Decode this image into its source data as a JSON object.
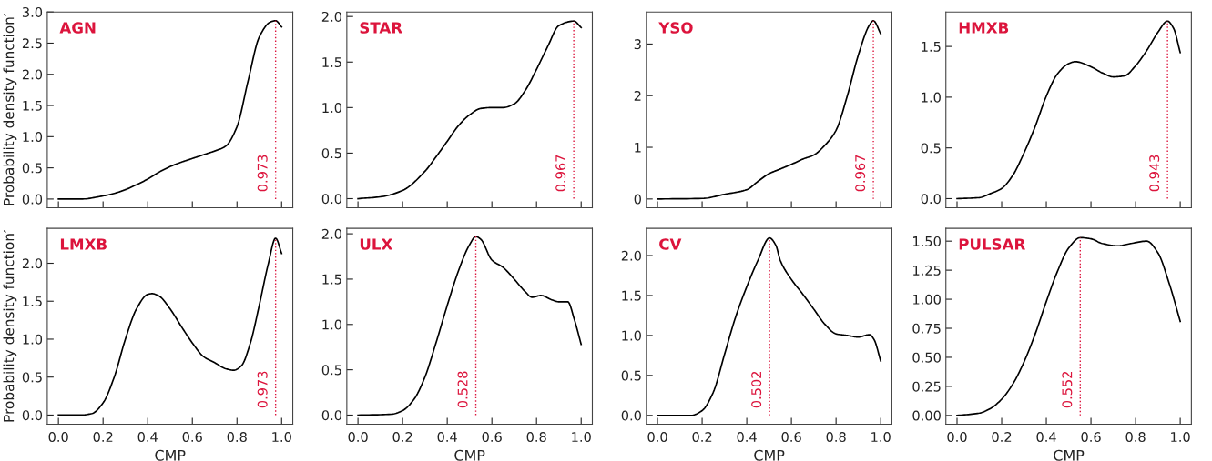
{
  "chart_data": [
    {
      "type": "line",
      "title": "AGN",
      "ylabel": "Probability density function′",
      "xlim": [
        -0.05,
        1.05
      ],
      "xticks": [
        {
          "value": 0,
          "label": null
        },
        {
          "value": 0.2,
          "label": null
        },
        {
          "value": 0.4,
          "label": null
        },
        {
          "value": 0.6,
          "label": null
        },
        {
          "value": 0.8,
          "label": null
        },
        {
          "value": 1.0,
          "label": null
        }
      ],
      "ylim": [
        -0.14,
        3.0
      ],
      "yticks": [
        {
          "value": 0,
          "label": "0.0"
        },
        {
          "value": 0.5,
          "label": "0.5"
        },
        {
          "value": 1.0,
          "label": "1.0"
        },
        {
          "value": 1.5,
          "label": "1.5"
        },
        {
          "value": 2.0,
          "label": "2.0"
        },
        {
          "value": 2.5,
          "label": "2.5"
        },
        {
          "value": 3.0,
          "label": "3.0"
        }
      ],
      "tick_labels": "y",
      "grid": false,
      "legend": false,
      "series": [
        {
          "color": "#000000",
          "x": [
            0,
            0.1,
            0.2,
            0.25,
            0.3,
            0.35,
            0.4,
            0.45,
            0.5,
            0.55,
            0.6,
            0.65,
            0.7,
            0.75,
            0.8,
            0.85,
            0.9,
            0.95,
            0.973,
            1.0
          ],
          "values": [
            0,
            0.0,
            0.05,
            0.09,
            0.15,
            0.23,
            0.32,
            0.43,
            0.52,
            0.59,
            0.65,
            0.71,
            0.77,
            0.85,
            1.16,
            1.9,
            2.6,
            2.84,
            2.86,
            2.76
          ]
        }
      ],
      "ref_lines": [
        {
          "axis": "x",
          "value": 0.973,
          "label": "0.973",
          "color": "#dc143c",
          "line_style": "dotted"
        }
      ]
    },
    {
      "type": "line",
      "title": "STAR",
      "xlim": [
        -0.05,
        1.05
      ],
      "xticks": [
        {
          "value": 0,
          "label": null
        },
        {
          "value": 0.2,
          "label": null
        },
        {
          "value": 0.4,
          "label": null
        },
        {
          "value": 0.6,
          "label": null
        },
        {
          "value": 0.8,
          "label": null
        },
        {
          "value": 1.0,
          "label": null
        }
      ],
      "ylim": [
        -0.1,
        2.05
      ],
      "yticks": [
        {
          "value": 0,
          "label": "0.0"
        },
        {
          "value": 0.5,
          "label": "0.5"
        },
        {
          "value": 1.0,
          "label": "1.0"
        },
        {
          "value": 1.5,
          "label": "1.5"
        },
        {
          "value": 2.0,
          "label": "2.0"
        }
      ],
      "tick_labels": "y",
      "grid": false,
      "legend": false,
      "series": [
        {
          "color": "#000000",
          "x": [
            0,
            0.1,
            0.2,
            0.3,
            0.35,
            0.4,
            0.45,
            0.5,
            0.55,
            0.6,
            0.65,
            0.7,
            0.75,
            0.8,
            0.85,
            0.9,
            0.967,
            1.0
          ],
          "values": [
            0,
            0.02,
            0.09,
            0.3,
            0.46,
            0.63,
            0.8,
            0.92,
            0.99,
            1.0,
            1.0,
            1.04,
            1.19,
            1.42,
            1.67,
            1.9,
            1.95,
            1.88
          ]
        }
      ],
      "ref_lines": [
        {
          "axis": "x",
          "value": 0.967,
          "label": "0.967",
          "color": "#dc143c",
          "line_style": "dotted"
        }
      ]
    },
    {
      "type": "line",
      "title": "YSO",
      "xlim": [
        -0.05,
        1.05
      ],
      "xticks": [
        {
          "value": 0,
          "label": null
        },
        {
          "value": 0.2,
          "label": null
        },
        {
          "value": 0.4,
          "label": null
        },
        {
          "value": 0.6,
          "label": null
        },
        {
          "value": 0.8,
          "label": null
        },
        {
          "value": 1.0,
          "label": null
        }
      ],
      "ylim": [
        -0.17,
        3.62
      ],
      "yticks": [
        0,
        1,
        2,
        3
      ],
      "tick_labels": "y",
      "grid": false,
      "legend": false,
      "series": [
        {
          "color": "#000000",
          "x": [
            0,
            0.2,
            0.3,
            0.4,
            0.45,
            0.5,
            0.55,
            0.6,
            0.65,
            0.7,
            0.75,
            0.8,
            0.85,
            0.9,
            0.95,
            0.967,
            1.0
          ],
          "values": [
            0,
            0.01,
            0.09,
            0.18,
            0.34,
            0.49,
            0.58,
            0.67,
            0.77,
            0.85,
            1.04,
            1.33,
            1.99,
            2.79,
            3.37,
            3.45,
            3.2
          ]
        }
      ],
      "ref_lines": [
        {
          "axis": "x",
          "value": 0.967,
          "label": "0.967",
          "color": "#dc143c",
          "line_style": "dotted"
        }
      ]
    },
    {
      "type": "line",
      "title": "HMXB",
      "xlim": [
        -0.05,
        1.05
      ],
      "xticks": [
        {
          "value": 0,
          "label": null
        },
        {
          "value": 0.2,
          "label": null
        },
        {
          "value": 0.4,
          "label": null
        },
        {
          "value": 0.6,
          "label": null
        },
        {
          "value": 0.8,
          "label": null
        },
        {
          "value": 1.0,
          "label": null
        }
      ],
      "ylim": [
        -0.09,
        1.84
      ],
      "yticks": [
        {
          "value": 0,
          "label": "0.0"
        },
        {
          "value": 0.5,
          "label": "0.5"
        },
        {
          "value": 1.0,
          "label": "1.0"
        },
        {
          "value": 1.5,
          "label": "1.5"
        }
      ],
      "tick_labels": "y",
      "grid": false,
      "legend": false,
      "series": [
        {
          "color": "#000000",
          "x": [
            0,
            0.1,
            0.15,
            0.2,
            0.25,
            0.3,
            0.35,
            0.4,
            0.45,
            0.5,
            0.53,
            0.6,
            0.65,
            0.7,
            0.75,
            0.8,
            0.85,
            0.9,
            0.943,
            0.97,
            1.0
          ],
          "values": [
            0,
            0.01,
            0.05,
            0.1,
            0.23,
            0.45,
            0.71,
            1.01,
            1.23,
            1.33,
            1.35,
            1.3,
            1.24,
            1.2,
            1.21,
            1.31,
            1.46,
            1.64,
            1.75,
            1.68,
            1.44
          ]
        }
      ],
      "ref_lines": [
        {
          "axis": "x",
          "value": 0.943,
          "label": "0.943",
          "color": "#dc143c",
          "line_style": "dotted"
        }
      ]
    },
    {
      "type": "line",
      "title": "LMXB",
      "ylabel": "Probability density function′",
      "xlabel": "CMP",
      "xlim": [
        -0.05,
        1.05
      ],
      "xticks": [
        {
          "value": 0,
          "label": "0.0"
        },
        {
          "value": 0.2,
          "label": "0.2"
        },
        {
          "value": 0.4,
          "label": "0.4"
        },
        {
          "value": 0.6,
          "label": "0.6"
        },
        {
          "value": 0.8,
          "label": "0.8"
        },
        {
          "value": 1.0,
          "label": "1.0"
        }
      ],
      "ylim": [
        -0.12,
        2.46
      ],
      "yticks": [
        {
          "value": 0,
          "label": "0.0"
        },
        {
          "value": 0.5,
          "label": "0.5"
        },
        {
          "value": 1.0,
          "label": "1.0"
        },
        {
          "value": 1.5,
          "label": "1.5"
        },
        {
          "value": 2.0,
          "label": "2.0"
        }
      ],
      "grid": false,
      "legend": false,
      "series": [
        {
          "color": "#000000",
          "x": [
            0,
            0.1,
            0.15,
            0.2,
            0.25,
            0.3,
            0.35,
            0.4,
            0.42,
            0.45,
            0.5,
            0.55,
            0.6,
            0.65,
            0.7,
            0.75,
            0.785,
            0.82,
            0.86,
            0.9,
            0.94,
            0.973,
            1.0
          ],
          "values": [
            0,
            0.0,
            0.02,
            0.16,
            0.5,
            1.0,
            1.4,
            1.59,
            1.6,
            1.57,
            1.4,
            1.17,
            0.95,
            0.77,
            0.69,
            0.61,
            0.59,
            0.65,
            0.95,
            1.45,
            1.99,
            2.33,
            2.13
          ]
        }
      ],
      "ref_lines": [
        {
          "axis": "x",
          "value": 0.973,
          "label": "0.973",
          "color": "#dc143c",
          "line_style": "dotted"
        }
      ]
    },
    {
      "type": "line",
      "title": "ULX",
      "xlabel": "CMP",
      "xlim": [
        -0.05,
        1.05
      ],
      "xticks": [
        {
          "value": 0,
          "label": "0.0"
        },
        {
          "value": 0.2,
          "label": "0.2"
        },
        {
          "value": 0.4,
          "label": "0.4"
        },
        {
          "value": 0.6,
          "label": "0.6"
        },
        {
          "value": 0.8,
          "label": "0.8"
        },
        {
          "value": 1.0,
          "label": "1.0"
        }
      ],
      "ylim": [
        -0.1,
        2.06
      ],
      "yticks": [
        {
          "value": 0,
          "label": "0.0"
        },
        {
          "value": 0.5,
          "label": "0.5"
        },
        {
          "value": 1.0,
          "label": "1.0"
        },
        {
          "value": 1.5,
          "label": "1.5"
        },
        {
          "value": 2.0,
          "label": "2.0"
        }
      ],
      "grid": false,
      "legend": false,
      "series": [
        {
          "color": "#000000",
          "x": [
            0,
            0.15,
            0.2,
            0.25,
            0.3,
            0.35,
            0.4,
            0.45,
            0.5,
            0.528,
            0.55,
            0.6,
            0.65,
            0.7,
            0.75,
            0.78,
            0.82,
            0.87,
            0.9,
            0.94,
            0.97,
            1.0
          ],
          "values": [
            0,
            0.01,
            0.05,
            0.17,
            0.42,
            0.8,
            1.21,
            1.59,
            1.88,
            1.97,
            1.94,
            1.71,
            1.63,
            1.5,
            1.36,
            1.3,
            1.32,
            1.27,
            1.25,
            1.25,
            1.05,
            0.78
          ]
        }
      ],
      "ref_lines": [
        {
          "axis": "x",
          "value": 0.528,
          "label": "0.528",
          "color": "#dc143c",
          "line_style": "dotted"
        }
      ]
    },
    {
      "type": "line",
      "title": "CV",
      "xlabel": "CMP",
      "xlim": [
        -0.05,
        1.05
      ],
      "xticks": [
        {
          "value": 0,
          "label": "0.0"
        },
        {
          "value": 0.2,
          "label": "0.2"
        },
        {
          "value": 0.4,
          "label": "0.4"
        },
        {
          "value": 0.6,
          "label": "0.6"
        },
        {
          "value": 0.8,
          "label": "0.8"
        },
        {
          "value": 1.0,
          "label": "1.0"
        }
      ],
      "ylim": [
        -0.11,
        2.34
      ],
      "yticks": [
        {
          "value": 0,
          "label": "0.0"
        },
        {
          "value": 0.5,
          "label": "0.5"
        },
        {
          "value": 1.0,
          "label": "1.0"
        },
        {
          "value": 1.5,
          "label": "1.5"
        },
        {
          "value": 2.0,
          "label": "2.0"
        }
      ],
      "grid": false,
      "legend": false,
      "series": [
        {
          "color": "#000000",
          "x": [
            0,
            0.15,
            0.2,
            0.25,
            0.3,
            0.35,
            0.4,
            0.45,
            0.502,
            0.53,
            0.55,
            0.6,
            0.65,
            0.7,
            0.75,
            0.8,
            0.85,
            0.9,
            0.95,
            0.97,
            1.0
          ],
          "values": [
            0,
            0.0,
            0.06,
            0.29,
            0.76,
            1.23,
            1.61,
            1.94,
            2.22,
            2.13,
            1.94,
            1.7,
            1.52,
            1.33,
            1.14,
            1.02,
            1.0,
            0.98,
            1.01,
            0.95,
            0.68
          ]
        }
      ],
      "ref_lines": [
        {
          "axis": "x",
          "value": 0.502,
          "label": "0.502",
          "color": "#dc143c",
          "line_style": "dotted"
        }
      ]
    },
    {
      "type": "line",
      "title": "PULSAR",
      "xlabel": "CMP",
      "xlim": [
        -0.05,
        1.05
      ],
      "xticks": [
        {
          "value": 0,
          "label": "0.0"
        },
        {
          "value": 0.2,
          "label": "0.2"
        },
        {
          "value": 0.4,
          "label": "0.4"
        },
        {
          "value": 0.6,
          "label": "0.6"
        },
        {
          "value": 0.8,
          "label": "0.8"
        },
        {
          "value": 1.0,
          "label": "1.0"
        }
      ],
      "ylim": [
        -0.075,
        1.61
      ],
      "yticks": [
        {
          "value": 0,
          "label": "0.00"
        },
        {
          "value": 0.25,
          "label": "0.25"
        },
        {
          "value": 0.5,
          "label": "0.50"
        },
        {
          "value": 0.75,
          "label": "0.75"
        },
        {
          "value": 1.0,
          "label": "1.00"
        },
        {
          "value": 1.25,
          "label": "1.25"
        },
        {
          "value": 1.5,
          "label": "1.50"
        }
      ],
      "grid": false,
      "legend": false,
      "series": [
        {
          "color": "#000000",
          "x": [
            0,
            0.1,
            0.15,
            0.2,
            0.25,
            0.3,
            0.35,
            0.4,
            0.45,
            0.5,
            0.552,
            0.6,
            0.65,
            0.72,
            0.78,
            0.85,
            0.9,
            0.95,
            1.0
          ],
          "values": [
            0,
            0.02,
            0.06,
            0.14,
            0.27,
            0.46,
            0.7,
            0.98,
            1.24,
            1.44,
            1.53,
            1.52,
            1.48,
            1.46,
            1.48,
            1.5,
            1.4,
            1.14,
            0.81
          ]
        }
      ],
      "ref_lines": [
        {
          "axis": "x",
          "value": 0.552,
          "label": "0.552",
          "color": "#dc143c",
          "line_style": "dotted"
        }
      ]
    }
  ]
}
